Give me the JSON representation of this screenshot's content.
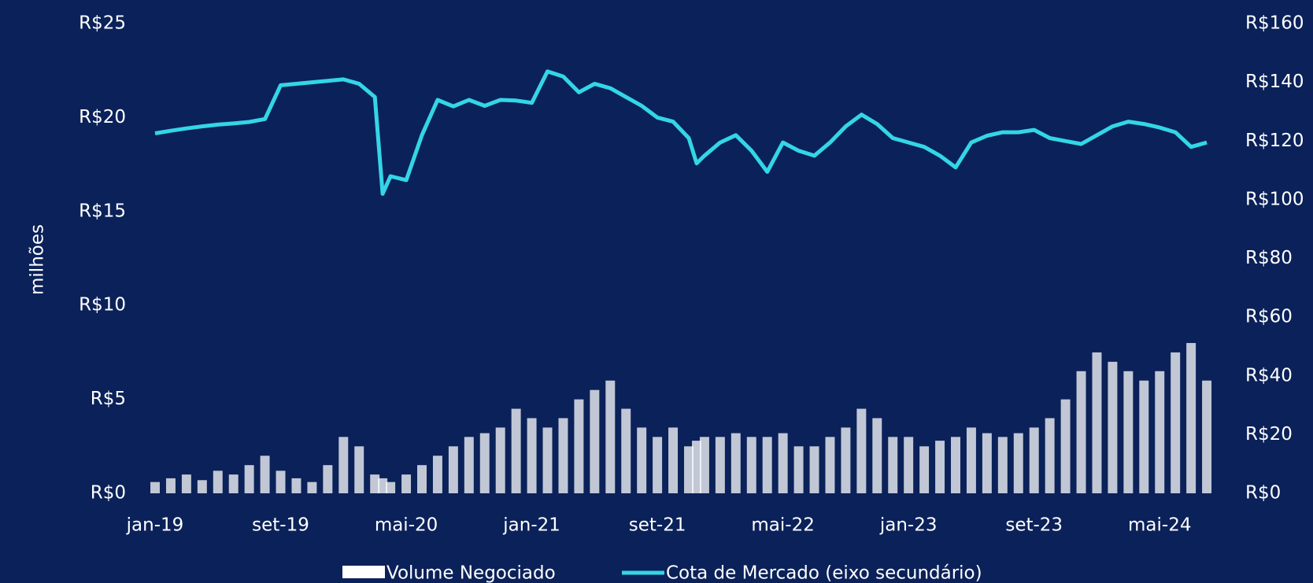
{
  "chart_data": {
    "type": "bar_line",
    "y_axis_label": "milhões",
    "x": [
      0,
      1,
      2,
      3,
      4,
      5,
      6,
      7,
      8,
      9,
      10,
      11,
      12,
      13,
      14,
      14.5,
      15,
      16,
      17,
      18,
      19,
      20,
      21,
      22,
      23,
      24,
      25,
      26,
      27,
      28,
      29,
      30,
      31,
      32,
      33,
      34,
      34.5,
      35,
      36,
      37,
      38,
      39,
      40,
      41,
      42,
      43,
      44,
      45,
      46,
      47,
      48,
      49,
      50,
      51,
      52,
      53,
      54,
      55,
      56,
      57,
      58,
      59,
      60,
      61,
      62,
      63,
      64,
      65,
      66,
      67
    ],
    "xlim": [
      0,
      68
    ],
    "xticks": [
      {
        "value": 0,
        "label": "jan-19"
      },
      {
        "value": 8,
        "label": "set-19"
      },
      {
        "value": 16,
        "label": "mai-20"
      },
      {
        "value": 24,
        "label": "jan-21"
      },
      {
        "value": 32,
        "label": "set-21"
      },
      {
        "value": 40,
        "label": "mai-22"
      },
      {
        "value": 48,
        "label": "jan-23"
      },
      {
        "value": 56,
        "label": "set-23"
      },
      {
        "value": 64,
        "label": "mai-24"
      }
    ],
    "ylim": [
      0,
      25
    ],
    "yticks": [
      {
        "value": 0,
        "label": "R$0"
      },
      {
        "value": 5,
        "label": "R$5"
      },
      {
        "value": 10,
        "label": "R$10"
      },
      {
        "value": 15,
        "label": "R$15"
      },
      {
        "value": 20,
        "label": "R$20"
      },
      {
        "value": 25,
        "label": "R$25"
      }
    ],
    "y2lim": [
      0,
      160
    ],
    "y2ticks": [
      {
        "value": 0,
        "label": "R$0"
      },
      {
        "value": 20,
        "label": "R$20"
      },
      {
        "value": 40,
        "label": "R$40"
      },
      {
        "value": 60,
        "label": "R$60"
      },
      {
        "value": 80,
        "label": "R$80"
      },
      {
        "value": 100,
        "label": "R$100"
      },
      {
        "value": 120,
        "label": "R$120"
      },
      {
        "value": 140,
        "label": "R$140"
      },
      {
        "value": 160,
        "label": "R$160"
      }
    ],
    "series": [
      {
        "name": "Volume Negociado",
        "color": "#ffffff",
        "axis": "y",
        "values": [
          0.6,
          0.8,
          1.0,
          0.7,
          1.2,
          1.0,
          1.5,
          2.0,
          1.2,
          0.8,
          0.6,
          1.5,
          3.0,
          2.5,
          1.0,
          0.8,
          0.6,
          1.0,
          1.5,
          2.0,
          2.5,
          3.0,
          3.2,
          3.5,
          4.5,
          4.0,
          3.5,
          4.0,
          5.0,
          5.5,
          6.0,
          4.5,
          3.5,
          3.0,
          3.5,
          2.5,
          2.8,
          3.0,
          3.0,
          3.2,
          3.0,
          3.0,
          3.2,
          2.5,
          2.5,
          3.0,
          3.5,
          4.5,
          4.0,
          3.0,
          3.0,
          2.5,
          2.8,
          3.0,
          3.5,
          3.2,
          3.0,
          3.2,
          3.5,
          4.0,
          5.0,
          6.5,
          7.5,
          7.0,
          6.5,
          6.0,
          6.5,
          7.5,
          8.0,
          6.0
        ]
      },
      {
        "name": "Cota de Mercado (eixo secundário)",
        "color": "#33d6e6",
        "axis": "y2",
        "values": [
          122.6,
          123.5,
          124.3,
          125,
          125.6,
          126,
          126.5,
          127.5,
          139,
          139.5,
          140,
          140.5,
          141,
          139.5,
          135,
          102,
          108,
          106.7,
          122,
          134,
          131.8,
          134,
          132,
          134,
          133.8,
          133,
          143.7,
          142,
          136.6,
          139.5,
          138,
          135,
          132,
          128,
          126.6,
          121,
          112.4,
          115,
          119.5,
          122,
          116.7,
          109.5,
          119.5,
          116.7,
          115,
          119.5,
          125,
          129,
          125.8,
          121,
          119.5,
          118,
          115,
          111,
          119.5,
          121.8,
          123,
          123,
          123.8,
          121,
          120,
          119,
          122,
          125,
          126.6,
          125.8,
          124.6,
          123,
          118,
          119.5
        ]
      }
    ]
  }
}
